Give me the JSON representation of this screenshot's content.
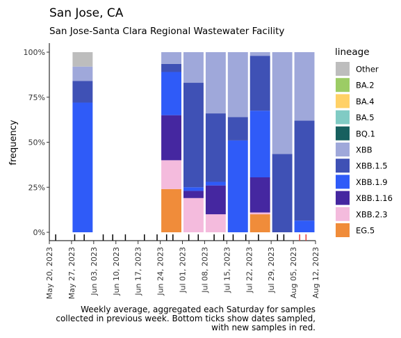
{
  "header": {
    "title": "San Jose, CA",
    "subtitle": "San Jose-Santa Clara Regional Wastewater Facility"
  },
  "caption": "Weekly average, aggregated each Saturday for samples\ncollected in previous week. Bottom ticks show dates sampled,\nwith new samples in red.",
  "colors": {
    "Other": "#bdbdbd",
    "BA.2": "#9ccc65",
    "BA.4": "#ffd166",
    "BA.5": "#80cbc4",
    "BQ.1": "#17605f",
    "XBB": "#9fa8da",
    "XBB.1.5": "#3f51b5",
    "XBB.1.9": "#2f5bf8",
    "XBB.1.16": "#4527a0",
    "XBB.2.3": "#f4bbdd",
    "EG.5": "#f08c3a",
    "sample_old": "#000000",
    "sample_new": "#e53935"
  },
  "chart_data": {
    "type": "bar",
    "stacked": true,
    "title": "San Jose, CA",
    "subtitle": "San Jose-Santa Clara Regional Wastewater Facility",
    "xlabel": "",
    "ylabel": "frequency",
    "ylim": [
      0,
      1
    ],
    "y_ticks": [
      "0%",
      "25%",
      "50%",
      "75%",
      "100%"
    ],
    "x_ticks": [
      "May 20, 2023",
      "May 27, 2023",
      "Jun 03, 2023",
      "Jun 10, 2023",
      "Jun 17, 2023",
      "Jun 24, 2023",
      "Jul 01, 2023",
      "Jul 08, 2023",
      "Jul 15, 2023",
      "Jul 22, 2023",
      "Jul 29, 2023",
      "Aug 05, 2023",
      "Aug 12, 2023"
    ],
    "x_range": [
      "2023-05-20",
      "2023-08-12"
    ],
    "legend": {
      "title": "lineage",
      "position": "right",
      "entries": [
        "Other",
        "BA.2",
        "BA.4",
        "BA.5",
        "BQ.1",
        "XBB",
        "XBB.1.5",
        "XBB.1.9",
        "XBB.1.16",
        "XBB.2.3",
        "EG.5"
      ]
    },
    "stack_order_bottom_to_top": [
      "EG.5",
      "XBB.2.3",
      "XBB.1.16",
      "XBB.1.9",
      "XBB.1.5",
      "XBB",
      "BQ.1",
      "BA.5",
      "BA.4",
      "BA.2",
      "Other"
    ],
    "bars": [
      {
        "date": "2023-05-27",
        "values": {
          "XBB.1.9": 0.72,
          "XBB.1.5": 0.12,
          "XBB": 0.08,
          "Other": 0.08
        }
      },
      {
        "date": "2023-06-24",
        "values": {
          "EG.5": 0.24,
          "XBB.2.3": 0.16,
          "XBB.1.16": 0.25,
          "XBB.1.9": 0.24,
          "XBB.1.5": 0.045,
          "XBB": 0.065
        }
      },
      {
        "date": "2023-07-01",
        "values": {
          "XBB.2.3": 0.19,
          "XBB.1.16": 0.04,
          "XBB.1.9": 0.02,
          "XBB.1.5": 0.58,
          "XBB": 0.17
        }
      },
      {
        "date": "2023-07-08",
        "values": {
          "XBB.2.3": 0.1,
          "XBB.1.16": 0.16,
          "XBB.1.9": 0.02,
          "XBB.1.5": 0.38,
          "XBB": 0.34
        }
      },
      {
        "date": "2023-07-15",
        "values": {
          "XBB.1.9": 0.51,
          "XBB.1.5": 0.13,
          "XBB": 0.36
        }
      },
      {
        "date": "2023-07-22",
        "values": {
          "EG.5": 0.1,
          "XBB.2.3": 0.01,
          "XBB.1.16": 0.195,
          "XBB.1.9": 0.37,
          "XBB.1.5": 0.305,
          "XBB": 0.02
        }
      },
      {
        "date": "2023-07-29",
        "values": {
          "XBB.1.5": 0.435,
          "XBB": 0.565
        }
      },
      {
        "date": "2023-08-05",
        "values": {
          "XBB.1.9": 0.065,
          "XBB.1.5": 0.555,
          "XBB": 0.38
        }
      }
    ],
    "sample_dates": [
      {
        "date": "2023-05-22",
        "new": false
      },
      {
        "date": "2023-05-28",
        "new": false
      },
      {
        "date": "2023-05-31",
        "new": false
      },
      {
        "date": "2023-06-06",
        "new": false
      },
      {
        "date": "2023-06-09",
        "new": false
      },
      {
        "date": "2023-06-13",
        "new": false
      },
      {
        "date": "2023-06-19",
        "new": false
      },
      {
        "date": "2023-06-23",
        "new": false
      },
      {
        "date": "2023-06-26",
        "new": false
      },
      {
        "date": "2023-06-28",
        "new": false
      },
      {
        "date": "2023-07-03",
        "new": false
      },
      {
        "date": "2023-07-06",
        "new": false
      },
      {
        "date": "2023-07-11",
        "new": false
      },
      {
        "date": "2023-07-14",
        "new": false
      },
      {
        "date": "2023-07-17",
        "new": false
      },
      {
        "date": "2023-07-21",
        "new": false
      },
      {
        "date": "2023-07-25",
        "new": false
      },
      {
        "date": "2023-07-31",
        "new": false
      },
      {
        "date": "2023-08-02",
        "new": false
      },
      {
        "date": "2023-08-07",
        "new": true
      },
      {
        "date": "2023-08-09",
        "new": true
      }
    ]
  }
}
